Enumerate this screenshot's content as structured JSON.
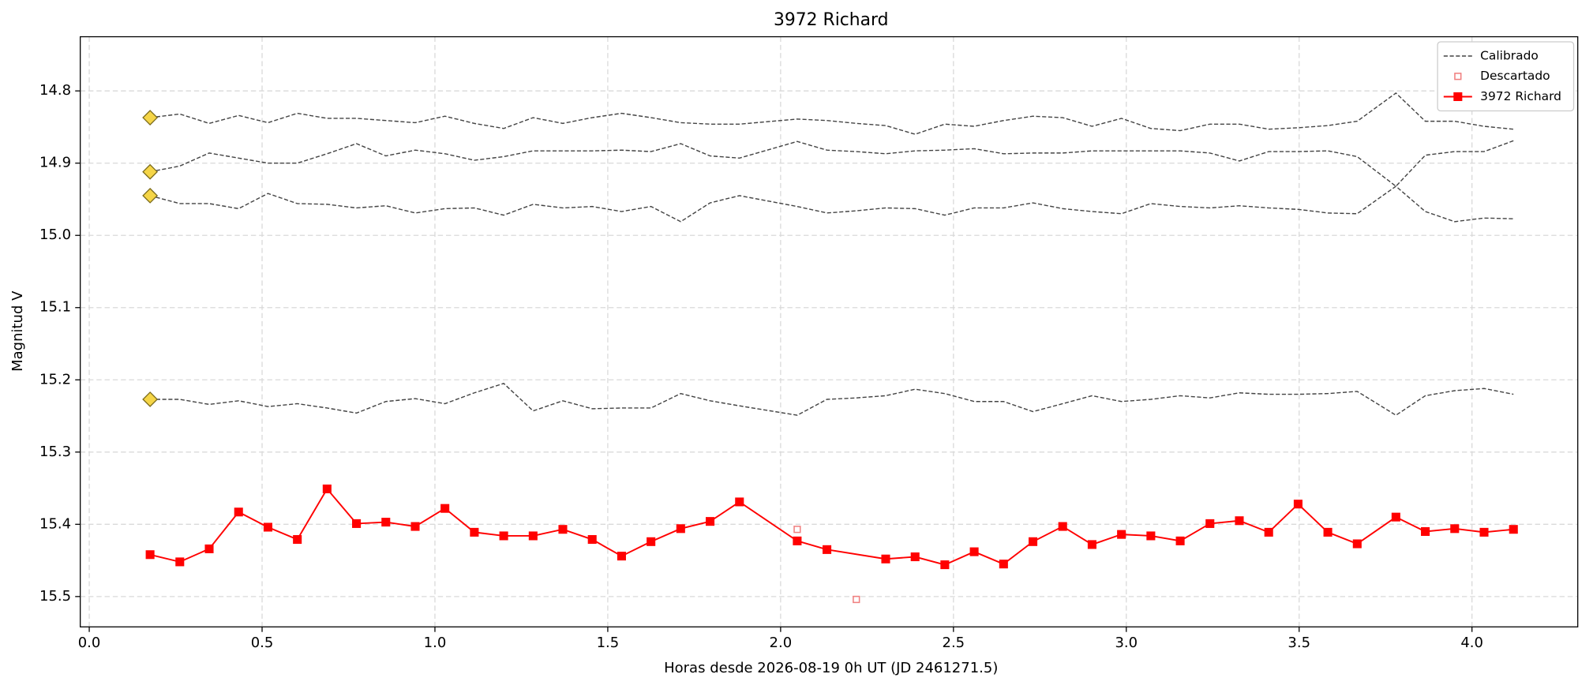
{
  "chart_data": {
    "type": "line",
    "title": "3972 Richard",
    "x_label": "Horas desde 2026-08-19 0h UT (JD 2461271.5)",
    "y_label": "Magnitud V",
    "xlim": [
      -0.026,
      4.306
    ],
    "ylim": [
      14.725,
      15.542
    ],
    "y_inverted": true,
    "grid": true,
    "legend": "upper right",
    "xticks": [
      {
        "value": 0,
        "label": "0.0"
      },
      0.5,
      {
        "value": 1,
        "label": "1.0"
      },
      1.5,
      {
        "value": 2,
        "label": "2.0"
      },
      2.5,
      {
        "value": 3,
        "label": "3.0"
      },
      3.5,
      {
        "value": 4,
        "label": "4.0"
      }
    ],
    "yticks": [
      14.8,
      14.9,
      {
        "value": 15,
        "label": "15.0"
      },
      15.1,
      15.2,
      15.3,
      15.4,
      15.5
    ],
    "series": [
      {
        "name": "Calibrado",
        "color": "#444444",
        "line": "dashed",
        "marker": null,
        "x": [
          0.176,
          0.262,
          0.347,
          0.432,
          0.517,
          0.602,
          0.688,
          0.773,
          0.858,
          0.943,
          1.029,
          1.114,
          1.199,
          1.284,
          1.37,
          1.455,
          1.54,
          1.625,
          1.711,
          1.796,
          1.881,
          2.048,
          2.134,
          2.219,
          2.304,
          2.389,
          2.475,
          2.56,
          2.645,
          2.73,
          2.816,
          2.901,
          2.986,
          3.071,
          3.156,
          3.242,
          3.327,
          3.412,
          3.497,
          3.583,
          3.668,
          3.78,
          3.865,
          3.95,
          4.035,
          4.12
        ],
        "values": [
          14.837,
          14.832,
          14.845,
          14.834,
          14.844,
          14.831,
          14.838,
          14.838,
          14.841,
          14.844,
          14.835,
          14.845,
          14.852,
          14.837,
          14.845,
          14.837,
          14.831,
          14.837,
          14.844,
          14.846,
          14.846,
          14.839,
          14.841,
          14.845,
          14.848,
          14.86,
          14.846,
          14.849,
          14.841,
          14.835,
          14.837,
          14.849,
          14.838,
          14.852,
          14.855,
          14.846,
          14.846,
          14.853,
          14.851,
          14.848,
          14.842,
          14.803,
          14.842,
          14.842,
          14.849,
          14.853
        ]
      },
      {
        "color": "#444444",
        "line": "dashed",
        "marker": null,
        "x": [
          0.176,
          0.262,
          0.347,
          0.432,
          0.517,
          0.602,
          0.688,
          0.773,
          0.858,
          0.943,
          1.029,
          1.114,
          1.199,
          1.284,
          1.37,
          1.455,
          1.54,
          1.625,
          1.711,
          1.796,
          1.881,
          2.048,
          2.134,
          2.219,
          2.304,
          2.389,
          2.475,
          2.56,
          2.645,
          2.73,
          2.816,
          2.901,
          2.986,
          3.071,
          3.156,
          3.242,
          3.327,
          3.412,
          3.497,
          3.583,
          3.668,
          3.78,
          3.865,
          3.95,
          4.035,
          4.12
        ],
        "values": [
          14.912,
          14.904,
          14.886,
          14.893,
          14.9,
          14.9,
          14.887,
          14.873,
          14.89,
          14.882,
          14.887,
          14.896,
          14.891,
          14.883,
          14.883,
          14.883,
          14.882,
          14.884,
          14.873,
          14.89,
          14.893,
          14.87,
          14.882,
          14.884,
          14.887,
          14.883,
          14.882,
          14.88,
          14.887,
          14.886,
          14.886,
          14.883,
          14.883,
          14.883,
          14.883,
          14.886,
          14.897,
          14.884,
          14.884,
          14.883,
          14.891,
          14.932,
          14.889,
          14.884,
          14.884,
          14.869
        ]
      },
      {
        "color": "#444444",
        "line": "dashed",
        "marker": null,
        "x": [
          0.176,
          0.262,
          0.347,
          0.432,
          0.517,
          0.602,
          0.688,
          0.773,
          0.858,
          0.943,
          1.029,
          1.114,
          1.199,
          1.284,
          1.37,
          1.455,
          1.54,
          1.625,
          1.711,
          1.796,
          1.881,
          2.048,
          2.134,
          2.219,
          2.304,
          2.389,
          2.475,
          2.56,
          2.645,
          2.73,
          2.816,
          2.901,
          2.986,
          3.071,
          3.156,
          3.242,
          3.327,
          3.412,
          3.497,
          3.583,
          3.668,
          3.78,
          3.865,
          3.95,
          4.035,
          4.12
        ],
        "values": [
          14.945,
          14.956,
          14.956,
          14.963,
          14.942,
          14.956,
          14.957,
          14.962,
          14.959,
          14.969,
          14.963,
          14.962,
          14.972,
          14.957,
          14.962,
          14.96,
          14.967,
          14.96,
          14.981,
          14.955,
          14.945,
          14.96,
          14.969,
          14.966,
          14.962,
          14.963,
          14.972,
          14.962,
          14.962,
          14.955,
          14.963,
          14.967,
          14.97,
          14.956,
          14.96,
          14.962,
          14.959,
          14.962,
          14.964,
          14.969,
          14.97,
          14.932,
          14.967,
          14.981,
          14.976,
          14.977
        ]
      },
      {
        "color": "#444444",
        "line": "dashed",
        "marker": null,
        "x": [
          0.176,
          0.262,
          0.347,
          0.432,
          0.517,
          0.602,
          0.688,
          0.773,
          0.858,
          0.943,
          1.029,
          1.114,
          1.199,
          1.284,
          1.37,
          1.455,
          1.54,
          1.625,
          1.711,
          1.796,
          1.881,
          2.048,
          2.134,
          2.219,
          2.304,
          2.389,
          2.475,
          2.56,
          2.645,
          2.73,
          2.816,
          2.901,
          2.986,
          3.071,
          3.156,
          3.242,
          3.327,
          3.412,
          3.497,
          3.583,
          3.668,
          3.78,
          3.865,
          3.95,
          4.035,
          4.12
        ],
        "values": [
          15.227,
          15.227,
          15.234,
          15.229,
          15.237,
          15.233,
          15.239,
          15.246,
          15.23,
          15.226,
          15.233,
          15.218,
          15.205,
          15.243,
          15.229,
          15.24,
          15.239,
          15.239,
          15.219,
          15.229,
          15.236,
          15.249,
          15.227,
          15.225,
          15.222,
          15.213,
          15.219,
          15.23,
          15.23,
          15.244,
          15.233,
          15.222,
          15.23,
          15.227,
          15.222,
          15.225,
          15.218,
          15.22,
          15.22,
          15.219,
          15.216,
          15.249,
          15.222,
          15.215,
          15.212,
          15.22
        ]
      },
      {
        "color": "#f5d547",
        "line": null,
        "marker": "diamond",
        "x": [
          0.176,
          0.176,
          0.176,
          0.176
        ],
        "values": [
          14.837,
          14.912,
          14.945,
          15.227
        ]
      },
      {
        "name": "Descartado",
        "color": "#f08080",
        "line": null,
        "marker": "open-square",
        "x": [
          2.048,
          2.219
        ],
        "values": [
          15.407,
          15.504
        ]
      },
      {
        "name": "3972 Richard",
        "color": "#ff0000",
        "line": "solid",
        "marker": "square",
        "x": [
          0.176,
          0.262,
          0.347,
          0.432,
          0.517,
          0.602,
          0.688,
          0.773,
          0.858,
          0.943,
          1.029,
          1.114,
          1.199,
          1.284,
          1.37,
          1.455,
          1.54,
          1.625,
          1.711,
          1.796,
          1.881,
          2.048,
          2.134,
          2.304,
          2.389,
          2.475,
          2.56,
          2.645,
          2.73,
          2.816,
          2.901,
          2.986,
          3.071,
          3.156,
          3.242,
          3.327,
          3.412,
          3.497,
          3.583,
          3.668,
          3.78,
          3.865,
          3.95,
          4.035,
          4.12
        ],
        "values": [
          15.442,
          15.452,
          15.434,
          15.383,
          15.404,
          15.421,
          15.351,
          15.399,
          15.397,
          15.403,
          15.378,
          15.411,
          15.416,
          15.416,
          15.407,
          15.421,
          15.444,
          15.424,
          15.406,
          15.396,
          15.369,
          15.423,
          15.435,
          15.448,
          15.445,
          15.456,
          15.438,
          15.455,
          15.424,
          15.403,
          15.428,
          15.414,
          15.416,
          15.423,
          15.399,
          15.395,
          15.411,
          15.372,
          15.411,
          15.427,
          15.39,
          15.41,
          15.406,
          15.411,
          15.407
        ]
      }
    ]
  }
}
